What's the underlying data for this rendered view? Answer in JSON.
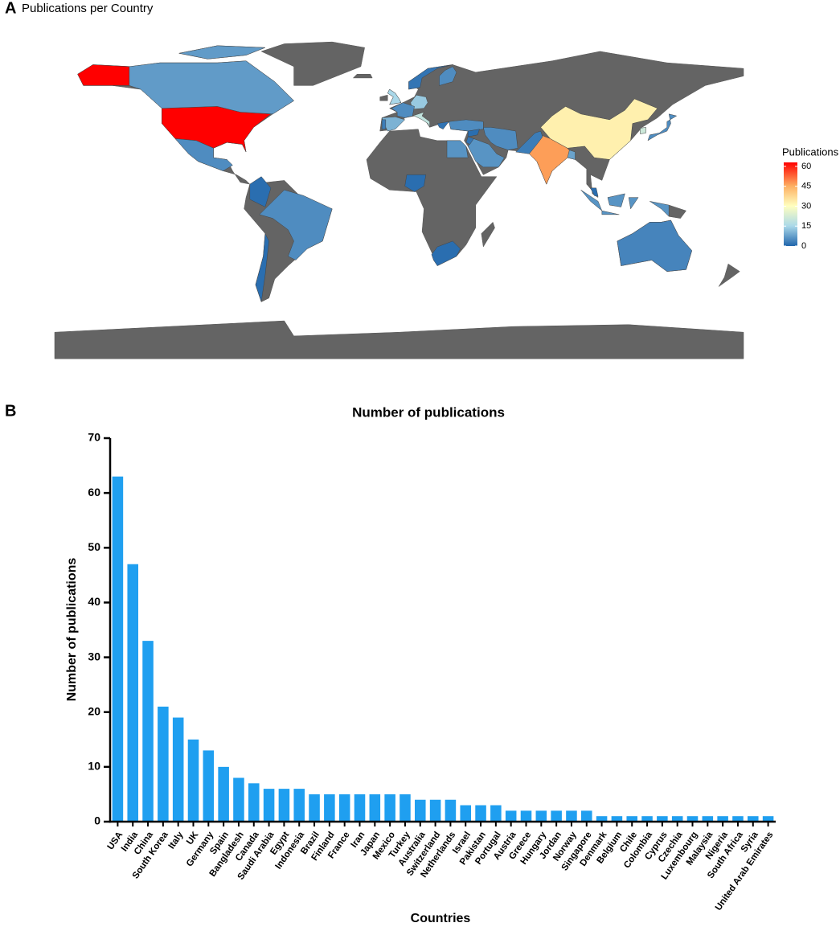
{
  "chart_data": [
    {
      "type": "map",
      "panel_label": "A",
      "title": "Publications per Country",
      "legend_title": "Publications",
      "colorlim": [
        0,
        63
      ],
      "colorticks": [
        0,
        15,
        30,
        45,
        60
      ]
    },
    {
      "type": "bar",
      "panel_label": "B",
      "title": "Number of publications",
      "xlabel": "Countries",
      "ylabel": "Number of publications",
      "categories": [
        "USA",
        "India",
        "China",
        "South Korea",
        "Italy",
        "UK",
        "Germany",
        "Spain",
        "Bangladesh",
        "Canada",
        "Saudi Arabia",
        "Egypt",
        "Indonesia",
        "Brazil",
        "Finland",
        "France",
        "Iran",
        "Japan",
        "Mexico",
        "Turkey",
        "Australia",
        "Switzerland",
        "Netherlands",
        "Israel",
        "Pakistan",
        "Portugal",
        "Austria",
        "Greece",
        "Hungary",
        "Jordan",
        "Norway",
        "Singapore",
        "Denmark",
        "Belgium",
        "Chile",
        "Colombia",
        "Cyprus",
        "Czechia",
        "Luxembourg",
        "Malaysia",
        "Nigeria",
        "South Africa",
        "Syria",
        "United Arab Emirates"
      ],
      "values": [
        63,
        47,
        33,
        21,
        19,
        15,
        13,
        10,
        8,
        7,
        6,
        6,
        6,
        5,
        5,
        5,
        5,
        5,
        5,
        5,
        4,
        4,
        4,
        3,
        3,
        3,
        2,
        2,
        2,
        2,
        2,
        2,
        1,
        1,
        1,
        1,
        1,
        1,
        1,
        1,
        1,
        1,
        1,
        1
      ],
      "color": "#1f9ff0",
      "ylim": [
        0,
        70
      ],
      "yticks": [
        0,
        10,
        20,
        30,
        40,
        50,
        60,
        70
      ]
    }
  ]
}
